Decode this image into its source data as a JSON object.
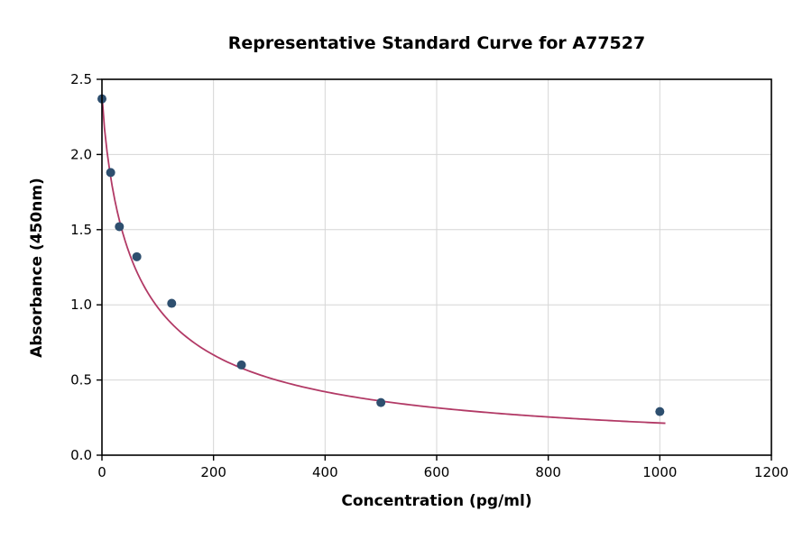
{
  "chart_data": {
    "type": "scatter",
    "title": "Representative Standard Curve for A77527",
    "xlabel": "Concentration (pg/ml)",
    "ylabel": "Absorbance (450nm)",
    "xlim": [
      0,
      1200
    ],
    "ylim": [
      0,
      2.5
    ],
    "xticks": [
      0,
      200,
      400,
      600,
      800,
      1000,
      1200
    ],
    "xtick_labels": [
      "0",
      "200",
      "400",
      "600",
      "800",
      "1000",
      "1200"
    ],
    "yticks": [
      0,
      0.5,
      1.0,
      1.5,
      2.0,
      2.5
    ],
    "ytick_labels": [
      "0.0",
      "0.5",
      "1.0",
      "1.5",
      "2.0",
      "2.5"
    ],
    "grid": true,
    "legend": "none",
    "points": [
      {
        "x": 0,
        "y": 2.37
      },
      {
        "x": 15.6,
        "y": 1.88
      },
      {
        "x": 31.25,
        "y": 1.52
      },
      {
        "x": 62.5,
        "y": 1.32
      },
      {
        "x": 125,
        "y": 1.01
      },
      {
        "x": 250,
        "y": 0.6
      },
      {
        "x": 500,
        "y": 0.35
      },
      {
        "x": 1000,
        "y": 0.29
      }
    ],
    "fit_curve": {
      "model": "4PL",
      "a": 2.4,
      "b": 0.85,
      "c": 65,
      "d": 0,
      "x_start": 0,
      "x_end": 1010
    },
    "colors": {
      "point": "#2e4f6f",
      "curve": "#b23a66",
      "grid": "#d6d6d6",
      "axis": "#000000",
      "background": "#ffffff"
    }
  }
}
